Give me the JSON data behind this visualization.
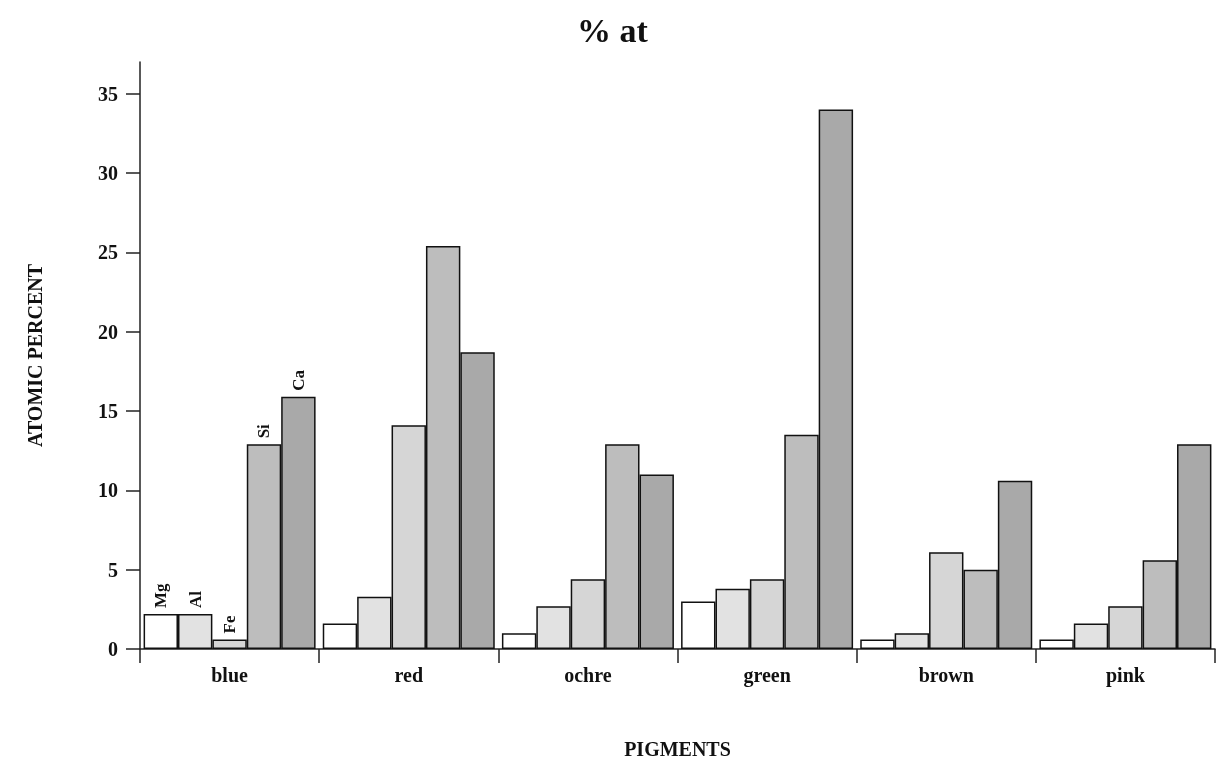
{
  "chart_data": {
    "type": "bar",
    "title": "% at",
    "xlabel": "PIGMENTS",
    "ylabel": "ATOMIC PERCENT",
    "categories": [
      "blue",
      "red",
      "ochre",
      "green",
      "brown",
      "pink"
    ],
    "series": [
      {
        "name": "Mg",
        "color": "#ffffff",
        "values": [
          2.2,
          1.6,
          1.0,
          3.0,
          0.6,
          0.6
        ]
      },
      {
        "name": "Al",
        "color": "#e2e2e2",
        "values": [
          2.2,
          3.3,
          2.7,
          3.8,
          1.0,
          1.6
        ]
      },
      {
        "name": "Fe",
        "color": "#d6d6d6",
        "values": [
          0.6,
          14.1,
          4.4,
          4.4,
          6.1,
          2.7
        ]
      },
      {
        "name": "Si",
        "color": "#bdbdbd",
        "values": [
          12.9,
          25.4,
          12.9,
          13.5,
          5.0,
          5.6
        ]
      },
      {
        "name": "Ca",
        "color": "#a9a9a9",
        "values": [
          15.9,
          18.7,
          11.0,
          34.0,
          10.6,
          12.9
        ]
      }
    ],
    "ylim": [
      0,
      37
    ],
    "yticks": [
      0,
      5,
      10,
      15,
      20,
      25,
      30,
      35
    ],
    "grid": false,
    "legend": false
  }
}
